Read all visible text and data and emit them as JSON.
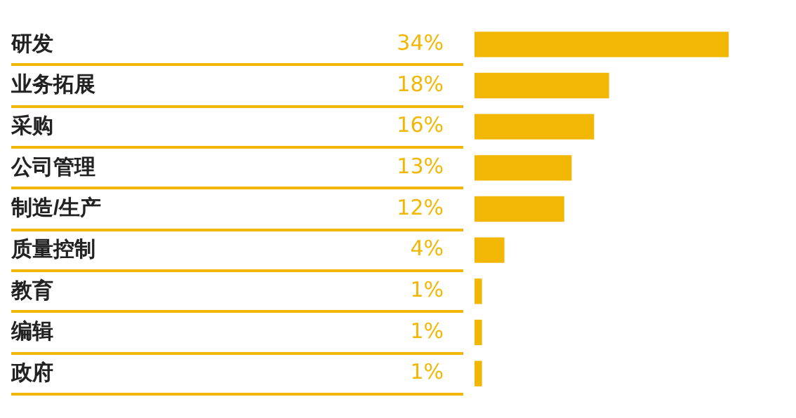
{
  "chart_data": {
    "type": "bar",
    "orientation": "horizontal",
    "categories": [
      "研发",
      "业务拓展",
      "采购",
      "公司管理",
      "制造/生产",
      "质量控制",
      "教育",
      "编辑",
      "政府"
    ],
    "values": [
      34,
      18,
      16,
      13,
      12,
      4,
      1,
      1,
      1
    ],
    "value_labels": [
      "34%",
      "18%",
      "16%",
      "13%",
      "12%",
      "4%",
      "1%",
      "1%",
      "1%"
    ],
    "color": "#f2b705",
    "grid": false,
    "legend": false
  }
}
